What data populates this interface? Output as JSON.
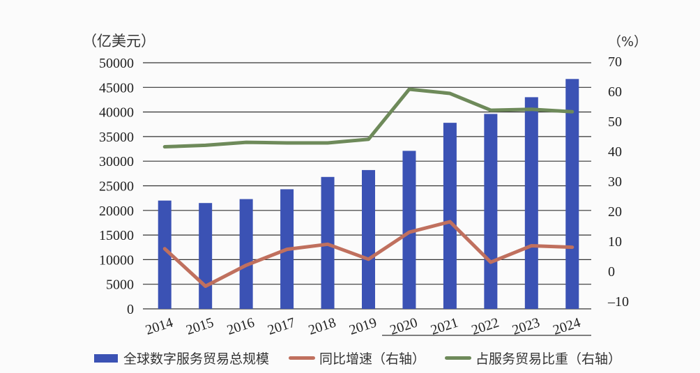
{
  "chart_data": {
    "type": "bar+line",
    "title": "",
    "left_axis": {
      "unit_label": "（亿美元）",
      "ticks": [
        0,
        5000,
        10000,
        15000,
        20000,
        25000,
        30000,
        35000,
        40000,
        45000,
        50000
      ],
      "ylim": [
        0,
        50000
      ]
    },
    "right_axis": {
      "unit_label": "（%）",
      "ticks": [
        -10,
        0,
        10,
        20,
        30,
        40,
        50,
        60,
        70
      ],
      "ylim": [
        -10,
        70
      ]
    },
    "categories": [
      "2014",
      "2015",
      "2016",
      "2017",
      "2018",
      "2019",
      "2020",
      "2021",
      "2022",
      "2023",
      "2024"
    ],
    "series": [
      {
        "name": "全球数字服务贸易总规模",
        "type": "bar",
        "axis": "left",
        "color": "#3b52b4",
        "values": [
          22000,
          21500,
          22300,
          24300,
          26800,
          28200,
          32100,
          37800,
          39600,
          43000,
          46700
        ]
      },
      {
        "name": "同比增速（右轴）",
        "type": "line",
        "axis": "right",
        "color": "#c0705e",
        "values": [
          7.5,
          -5,
          2,
          7.3,
          9,
          4,
          13,
          16.5,
          3,
          8.5,
          8
        ]
      },
      {
        "name": "占服务贸易比重（右轴）",
        "type": "line",
        "axis": "right",
        "color": "#6e8a5a",
        "values": [
          41.5,
          42,
          43,
          42.8,
          42.8,
          44,
          60.7,
          59.3,
          53.7,
          54,
          53.2
        ]
      }
    ],
    "grid": true,
    "legend_position": "bottom"
  },
  "legend": {
    "bar_label": "全球数字服务贸易总规模",
    "growth_label": "同比增速（右轴）",
    "share_label": "占服务贸易比重（右轴）"
  },
  "colors": {
    "bar": "#3b52b4",
    "growth": "#c0705e",
    "share": "#6e8a5a",
    "grid": "#333333"
  }
}
